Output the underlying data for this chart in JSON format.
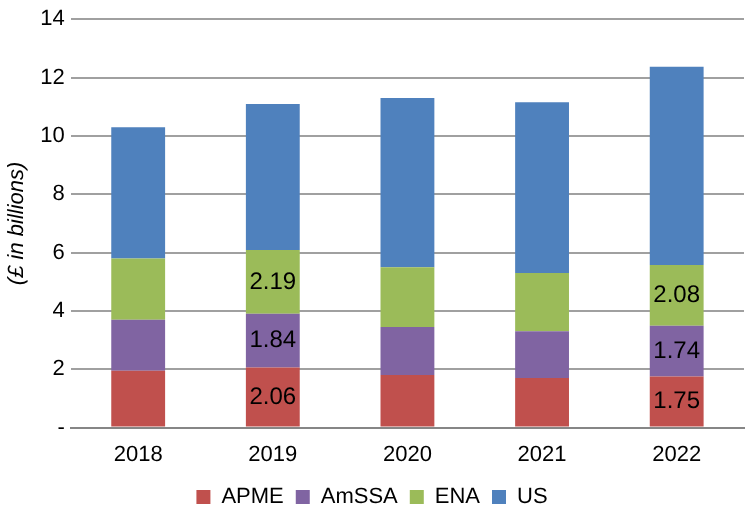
{
  "chart_data": {
    "type": "bar",
    "stacked": true,
    "ylabel": "(£ in billions)",
    "categories": [
      "2018",
      "2019",
      "2020",
      "2021",
      "2022"
    ],
    "series": [
      {
        "name": "APME",
        "color": "#c0504d",
        "values": [
          1.95,
          2.06,
          1.8,
          1.7,
          1.75
        ],
        "value_labels": [
          null,
          "2.06",
          null,
          null,
          "1.75"
        ]
      },
      {
        "name": "AmSSA",
        "color": "#8064a2",
        "values": [
          1.75,
          1.84,
          1.65,
          1.6,
          1.74
        ],
        "value_labels": [
          null,
          "1.84",
          null,
          null,
          "1.74"
        ]
      },
      {
        "name": "ENA",
        "color": "#9bbb59",
        "values": [
          2.1,
          2.19,
          2.05,
          2.0,
          2.08
        ],
        "value_labels": [
          null,
          "2.19",
          null,
          null,
          "2.08"
        ]
      },
      {
        "name": "US",
        "color": "#4f81bd",
        "values": [
          4.5,
          5.0,
          5.8,
          5.85,
          6.8
        ]
      }
    ],
    "ylim": [
      0,
      14
    ],
    "yticks": [
      {
        "value": 0,
        "label": "-"
      },
      2,
      4,
      6,
      8,
      10,
      12,
      14
    ],
    "grid": "y",
    "legend": "bottom"
  }
}
